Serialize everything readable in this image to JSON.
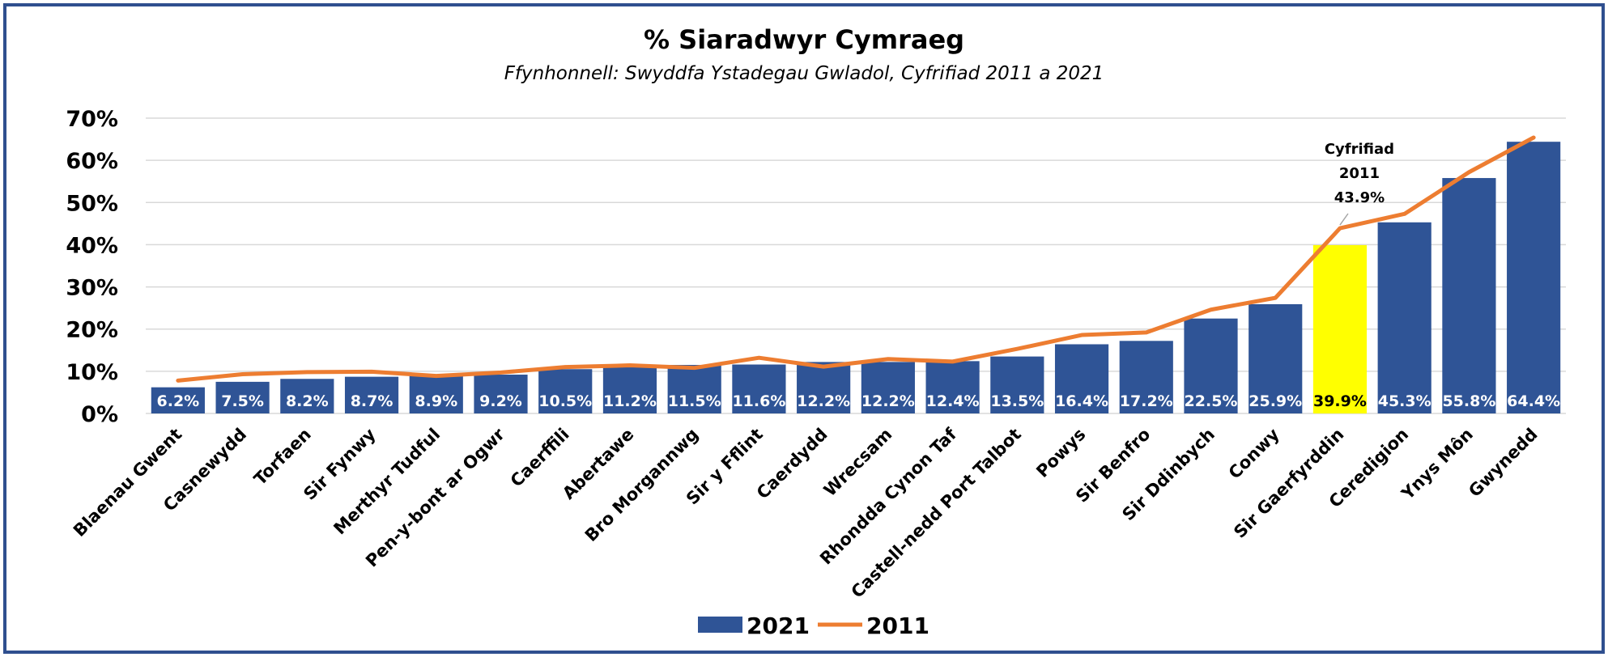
{
  "chart_data": {
    "type": "bar",
    "title": "% Siaradwyr Cymraeg",
    "subtitle": "Ffynhonnell: Swyddfa Ystadegau Gwladol, Cyfrifiad 2011 a 2021",
    "categories": [
      "Blaenau Gwent",
      "Casnewydd",
      "Torfaen",
      "Sir Fynwy",
      "Merthyr Tudful",
      "Pen-y-bont ar Ogwr",
      "Caerffili",
      "Abertawe",
      "Bro Morgannwg",
      "Sir y Fflint",
      "Caerdydd",
      "Wrecsam",
      "Rhondda Cynon Taf",
      "Castell-nedd Port Talbot",
      "Powys",
      "Sir Benfro",
      "Sir Ddinbych",
      "Conwy",
      "Sir Gaerfyrddin",
      "Ceredigion",
      "Ynys Môn",
      "Gwynedd"
    ],
    "series": [
      {
        "name": "2021",
        "kind": "bar",
        "color": "#2f5496",
        "values": [
          6.2,
          7.5,
          8.2,
          8.7,
          8.9,
          9.2,
          10.5,
          11.2,
          11.5,
          11.6,
          12.2,
          12.2,
          12.4,
          13.5,
          16.4,
          17.2,
          22.5,
          25.9,
          39.9,
          45.3,
          55.8,
          64.4
        ],
        "data_labels": [
          "6.2%",
          "7.5%",
          "8.2%",
          "8.7%",
          "8.9%",
          "9.2%",
          "10.5%",
          "11.2%",
          "11.5%",
          "11.6%",
          "12.2%",
          "12.2%",
          "12.4%",
          "13.5%",
          "16.4%",
          "17.2%",
          "22.5%",
          "25.9%",
          "39.9%",
          "45.3%",
          "55.8%",
          "64.4%"
        ]
      },
      {
        "name": "2011",
        "kind": "line",
        "color": "#ed7d31",
        "values": [
          7.8,
          9.3,
          9.8,
          9.9,
          8.9,
          9.7,
          11.0,
          11.4,
          10.8,
          13.2,
          11.1,
          12.9,
          12.3,
          15.3,
          18.6,
          19.2,
          24.6,
          27.4,
          43.9,
          47.3,
          57.2,
          65.4
        ]
      }
    ],
    "highlight": {
      "category": "Sir Gaerfyrddin",
      "color": "#ffff00",
      "label_color": "#000000"
    },
    "annotation": {
      "category": "Sir Gaerfyrddin",
      "lines": [
        "Cyfrifiad",
        "2011",
        "43.9%"
      ]
    },
    "y_ticks": [
      "0%",
      "10%",
      "20%",
      "30%",
      "40%",
      "50%",
      "60%",
      "70%"
    ],
    "ylim": [
      0,
      70
    ],
    "grid": true,
    "legend": {
      "position": "bottom",
      "entries": [
        "2021",
        "2011"
      ]
    }
  }
}
